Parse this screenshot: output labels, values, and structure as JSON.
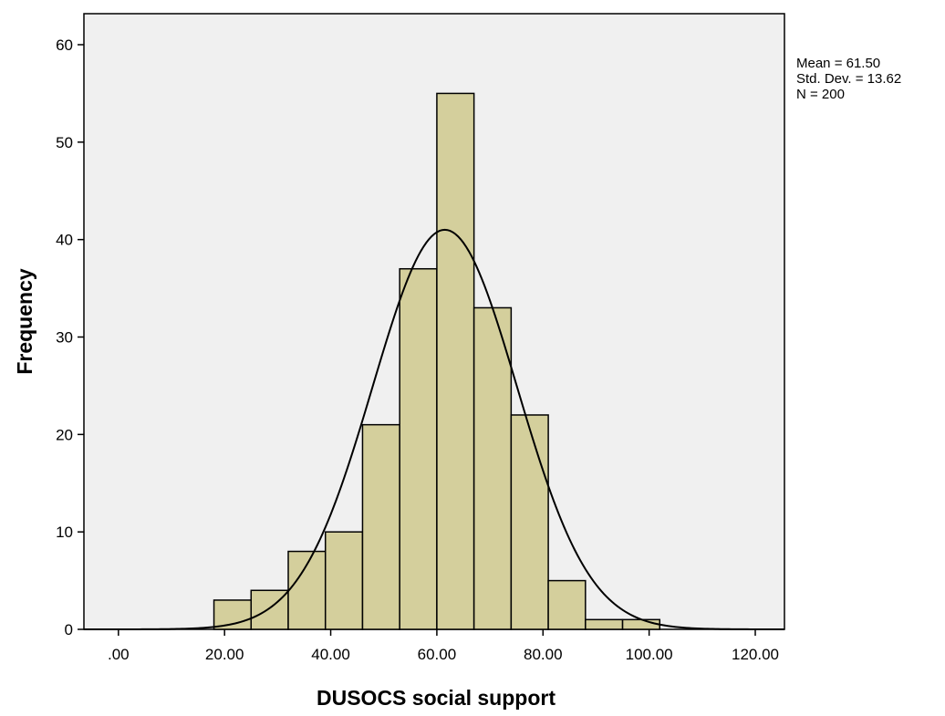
{
  "chart_data": {
    "type": "bar",
    "subtype": "histogram",
    "title": "",
    "xlabel": "DUSOCS social support",
    "ylabel": "Frequency",
    "xlim": [
      -6.5,
      125.5
    ],
    "ylim": [
      0,
      60
    ],
    "x_ticks": [
      ".00",
      "20.00",
      "40.00",
      "60.00",
      "80.00",
      "100.00",
      "120.00"
    ],
    "y_ticks": [
      "0",
      "10",
      "20",
      "30",
      "40",
      "50",
      "60"
    ],
    "bins": [
      {
        "start": 18,
        "end": 25,
        "count": 3
      },
      {
        "start": 25,
        "end": 32,
        "count": 4
      },
      {
        "start": 32,
        "end": 39,
        "count": 8
      },
      {
        "start": 39,
        "end": 46,
        "count": 10
      },
      {
        "start": 46,
        "end": 53,
        "count": 21
      },
      {
        "start": 53,
        "end": 60,
        "count": 37
      },
      {
        "start": 60,
        "end": 67,
        "count": 55
      },
      {
        "start": 67,
        "end": 74,
        "count": 33
      },
      {
        "start": 74,
        "end": 81,
        "count": 22
      },
      {
        "start": 81,
        "end": 88,
        "count": 5
      },
      {
        "start": 88,
        "end": 95,
        "count": 1
      },
      {
        "start": 95,
        "end": 102,
        "count": 1
      }
    ],
    "normal_curve": {
      "mean": 61.5,
      "sd": 13.62,
      "n": 200,
      "bin_width": 7
    },
    "stats": [
      "Mean = 61.50",
      "Std. Dev. = 13.62",
      "N = 200"
    ],
    "grid": false,
    "colors": {
      "bar_fill": "#d4cf9c",
      "bar_stroke": "#000000",
      "plot_bg": "#f0f0f0",
      "curve": "#000000"
    }
  }
}
